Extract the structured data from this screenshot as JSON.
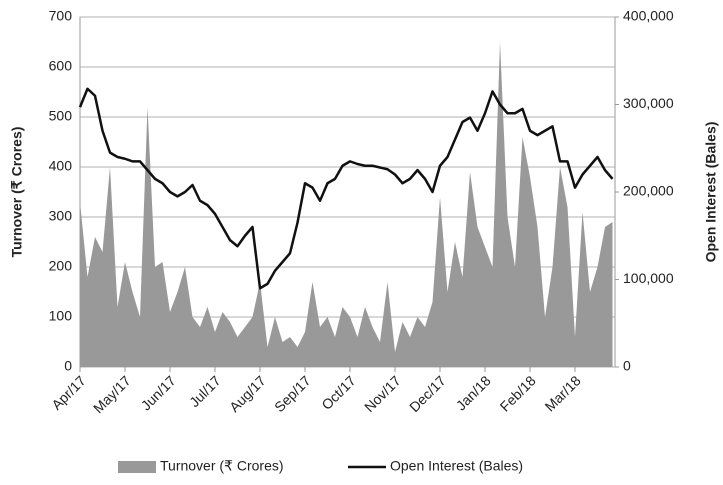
{
  "chart_data": {
    "type": "area",
    "ylabel": "Turnover (₹ Crores)",
    "y2label": "Open Interest (Bales)",
    "categories": [
      "Apr/17",
      null,
      null,
      null,
      null,
      null,
      "May/17",
      null,
      null,
      null,
      null,
      null,
      "Jun/17",
      null,
      null,
      null,
      null,
      null,
      "Jul/17",
      null,
      null,
      null,
      null,
      null,
      "Aug/17",
      null,
      null,
      null,
      null,
      null,
      "Sep/17",
      null,
      null,
      null,
      null,
      null,
      "Oct/17",
      null,
      null,
      null,
      null,
      null,
      "Nov/17",
      null,
      null,
      null,
      null,
      null,
      "Dec/17",
      null,
      null,
      null,
      null,
      null,
      "Jan/18",
      null,
      null,
      null,
      null,
      null,
      "Feb/18",
      null,
      null,
      null,
      null,
      null,
      "Mar/18",
      null,
      null,
      null,
      null,
      null
    ],
    "series": [
      {
        "name": "Turnover (₹ Crores)",
        "type": "area",
        "color": "#999999",
        "values": [
          330,
          180,
          260,
          230,
          400,
          120,
          210,
          150,
          100,
          520,
          200,
          210,
          110,
          150,
          200,
          100,
          80,
          120,
          70,
          110,
          90,
          60,
          80,
          100,
          170,
          40,
          100,
          50,
          60,
          40,
          70,
          170,
          80,
          100,
          60,
          120,
          100,
          60,
          120,
          80,
          50,
          170,
          30,
          90,
          60,
          100,
          80,
          130,
          340,
          150,
          250,
          180,
          390,
          280,
          240,
          200,
          650,
          300,
          200,
          460,
          380,
          280,
          100,
          200,
          400,
          320,
          60,
          310,
          150,
          200,
          280,
          290
        ]
      },
      {
        "name": "Open Interest (Bales)",
        "type": "line",
        "color": "#111111",
        "axis": "y2",
        "values": [
          297000,
          318000,
          310000,
          270000,
          245000,
          240000,
          238000,
          235000,
          235000,
          225000,
          215000,
          210000,
          200000,
          195000,
          200000,
          208000,
          190000,
          185000,
          175000,
          160000,
          145000,
          138000,
          150000,
          160000,
          90000,
          95000,
          110000,
          120000,
          130000,
          165000,
          210000,
          205000,
          190000,
          210000,
          215000,
          230000,
          235000,
          232000,
          230000,
          230000,
          228000,
          226000,
          220000,
          210000,
          215000,
          225000,
          215000,
          200000,
          230000,
          240000,
          260000,
          280000,
          285000,
          270000,
          290000,
          315000,
          300000,
          290000,
          290000,
          295000,
          270000,
          265000,
          270000,
          275000,
          235000,
          235000,
          205000,
          220000,
          230000,
          240000,
          225000,
          215000
        ]
      }
    ],
    "ylim": [
      0,
      700
    ],
    "yticks": [
      0,
      100,
      200,
      300,
      400,
      500,
      600,
      700
    ],
    "y2lim": [
      0,
      400000
    ],
    "y2ticks": [
      0,
      {
        "value": 100000,
        "label": "100,000"
      },
      {
        "value": 200000,
        "label": "200,000"
      },
      {
        "value": 300000,
        "label": "300,000"
      },
      {
        "value": 400000,
        "label": "400,000"
      }
    ],
    "grid": true,
    "legend": "bottom"
  }
}
